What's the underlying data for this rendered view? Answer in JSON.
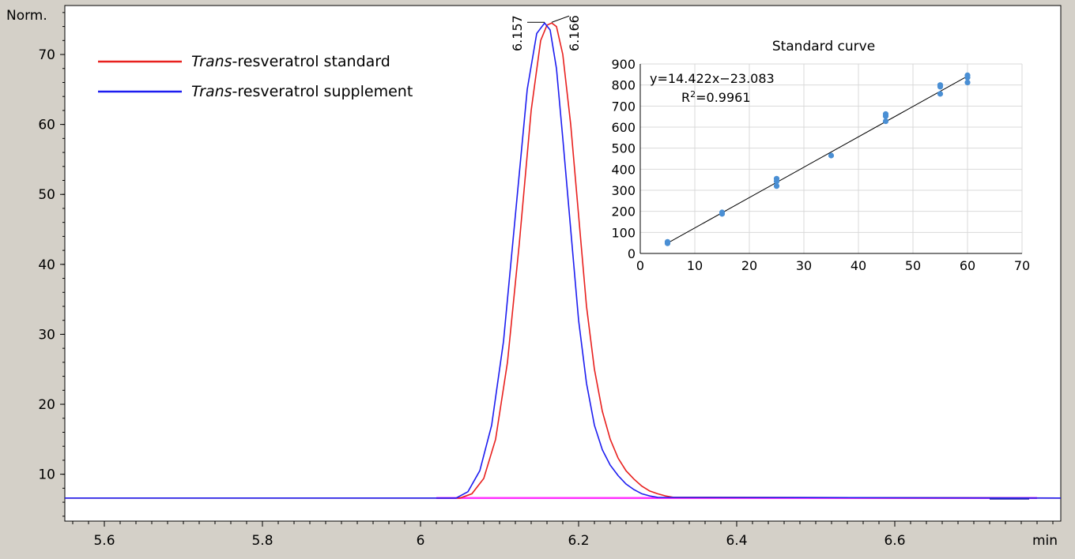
{
  "chart_data": [
    {
      "type": "line",
      "title": "",
      "xlabel": "min",
      "ylabel": "Norm.",
      "xlim": [
        5.55,
        6.81
      ],
      "ylim": [
        3.3,
        77
      ],
      "xticks": [
        5.6,
        5.8,
        6,
        6.2,
        6.4,
        6.6
      ],
      "xtick_labels": [
        "5.6",
        "5.8",
        "6",
        "6.2",
        "6.4",
        "6.6"
      ],
      "yticks": [
        10,
        20,
        30,
        40,
        50,
        60,
        70
      ],
      "ytick_labels": [
        "10",
        "20",
        "30",
        "40",
        "50",
        "60",
        "70"
      ],
      "baseline": 6.6,
      "legend_position": "top-left",
      "series": [
        {
          "name_italic": "Trans",
          "name_rest": "-resveratrol standard",
          "color": "#e8201e",
          "x": [
            5.55,
            6.05,
            6.065,
            6.08,
            6.095,
            6.11,
            6.125,
            6.14,
            6.152,
            6.16,
            6.166,
            6.172,
            6.18,
            6.19,
            6.2,
            6.21,
            6.22,
            6.23,
            6.24,
            6.25,
            6.26,
            6.27,
            6.28,
            6.29,
            6.3,
            6.31,
            6.32,
            6.81
          ],
          "y": [
            6.6,
            6.6,
            7.2,
            9.4,
            15,
            26,
            43,
            62,
            72,
            74.2,
            74.5,
            74,
            70,
            60,
            47,
            34,
            25,
            19,
            15,
            12.3,
            10.5,
            9.3,
            8.3,
            7.6,
            7.2,
            6.9,
            6.7,
            6.6
          ]
        },
        {
          "name_italic": "Trans",
          "name_rest": "-resveratrol supplement",
          "color": "#1c1cf0",
          "x": [
            5.55,
            6.045,
            6.06,
            6.075,
            6.09,
            6.105,
            6.12,
            6.135,
            6.147,
            6.157,
            6.164,
            6.172,
            6.18,
            6.19,
            6.2,
            6.21,
            6.22,
            6.23,
            6.24,
            6.25,
            6.26,
            6.27,
            6.28,
            6.29,
            6.3,
            6.81
          ],
          "y": [
            6.6,
            6.6,
            7.5,
            10.5,
            17,
            29,
            47,
            65,
            73,
            74.5,
            73.5,
            68,
            58,
            45,
            32,
            23,
            17,
            13.5,
            11.3,
            9.8,
            8.6,
            7.8,
            7.2,
            6.9,
            6.7,
            6.6
          ]
        }
      ],
      "peak_labels": [
        "6.157",
        "6.166"
      ],
      "peak_label_x": [
        6.157,
        6.166
      ]
    },
    {
      "type": "scatter",
      "title": "Standard curve",
      "xlabel": "",
      "ylabel": "",
      "xlim": [
        0,
        70
      ],
      "ylim": [
        0,
        900
      ],
      "xticks": [
        0,
        10,
        20,
        30,
        40,
        50,
        60,
        70
      ],
      "yticks": [
        0,
        100,
        200,
        300,
        400,
        500,
        600,
        700,
        800,
        900
      ],
      "grid": true,
      "points_x": [
        5,
        5,
        15,
        15,
        25,
        25,
        25,
        35,
        45,
        45,
        45,
        55,
        55,
        55,
        60,
        60,
        60
      ],
      "points_y": [
        48,
        55,
        188,
        195,
        320,
        342,
        355,
        465,
        628,
        652,
        662,
        758,
        792,
        800,
        812,
        836,
        846
      ],
      "point_color": "#4a8fd4",
      "fit": {
        "slope": 14.422,
        "intercept": -23.083,
        "x_range": [
          5,
          60
        ]
      },
      "equation": "y=14.422x−23.083",
      "r2_prefix": "R",
      "r2_sup": "2",
      "r2_value": "=0.9961"
    }
  ]
}
